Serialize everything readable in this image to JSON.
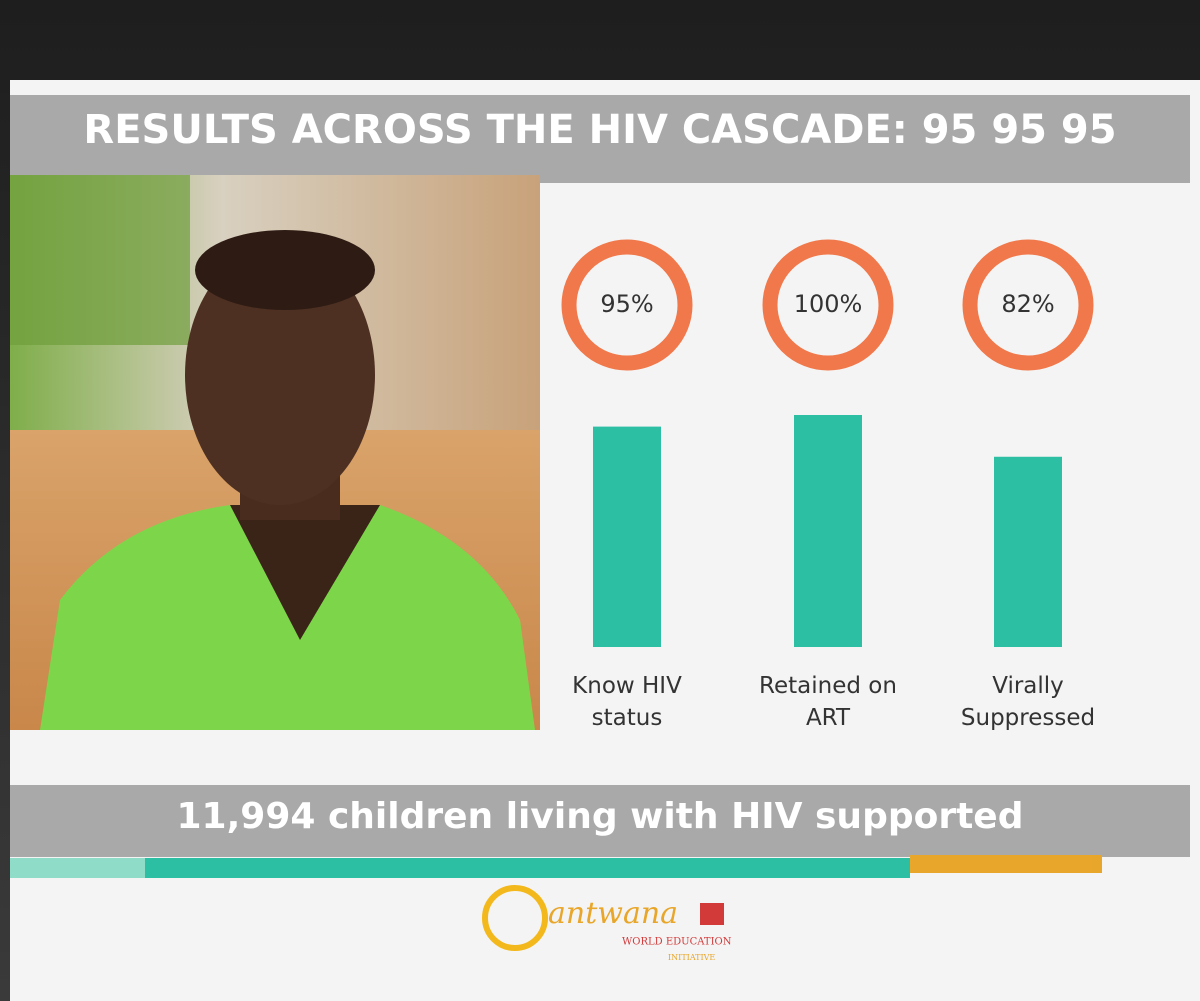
{
  "chart_data": {
    "type": "bar",
    "title": "RESULTS ACROSS THE HIV CASCADE: 95 95 95",
    "categories": [
      "Know HIV status",
      "Retained on ART",
      "Virally Suppressed"
    ],
    "values": [
      95,
      100,
      82
    ],
    "value_labels": [
      "95%",
      "100%",
      "82%"
    ],
    "color": "#2dbfa3",
    "ring_color": "#f0784a",
    "footer": "11,994 children living with HIV supported",
    "logo": {
      "name": "antwana",
      "line1": "WORLD EDUCATION",
      "line2": "INITIATIVE"
    }
  }
}
